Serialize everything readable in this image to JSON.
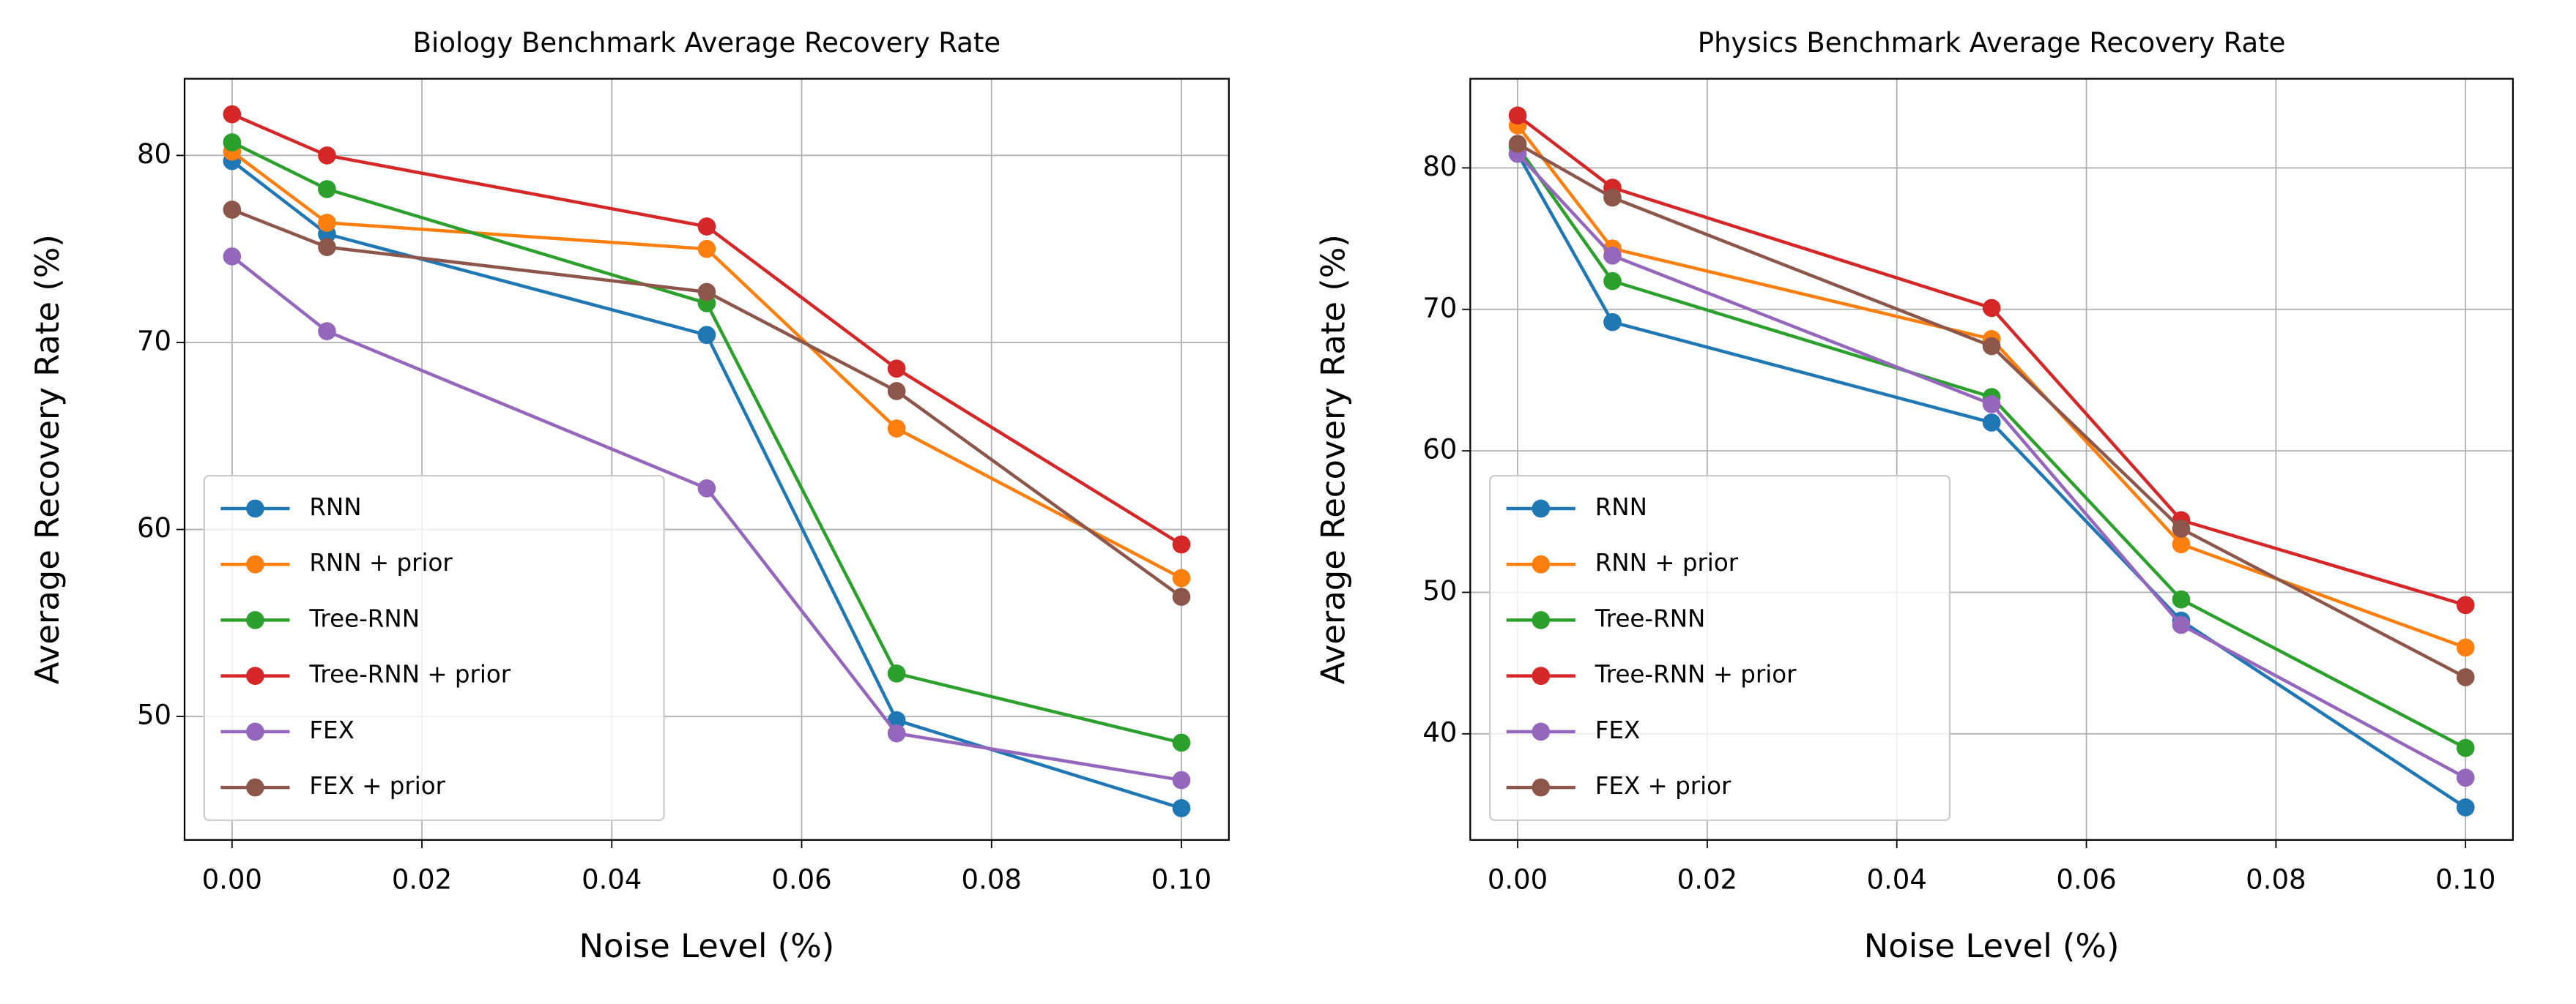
{
  "chart_data": [
    {
      "type": "line",
      "title": "Biology Benchmark Average Recovery Rate",
      "xlabel": "Noise Level (%)",
      "ylabel": "Average Recovery Rate (%)",
      "x": [
        0,
        0.01,
        0.05,
        0.07,
        0.1
      ],
      "xlim": [
        -0.005,
        0.105
      ],
      "ylim": [
        43.4,
        84.1
      ],
      "xticks": [
        {
          "value": 0,
          "label": "0.00"
        },
        {
          "value": 0.02,
          "label": "0.02"
        },
        {
          "value": 0.04,
          "label": "0.04"
        },
        {
          "value": 0.06,
          "label": "0.06"
        },
        {
          "value": 0.08,
          "label": "0.08"
        },
        {
          "value": 0.1,
          "label": "0.10"
        }
      ],
      "yticks": [
        50,
        60,
        70,
        80
      ],
      "grid": true,
      "legend": "lower left",
      "series": [
        {
          "name": "RNN",
          "color": "#1f77b4",
          "values": [
            79.7,
            75.8,
            70.4,
            49.8,
            45.1
          ]
        },
        {
          "name": "RNN + prior",
          "color": "#ff7f0e",
          "values": [
            80.2,
            76.4,
            75.0,
            65.4,
            57.4
          ]
        },
        {
          "name": "Tree-RNN",
          "color": "#2ca02c",
          "values": [
            80.7,
            78.2,
            72.1,
            52.3,
            48.6
          ]
        },
        {
          "name": "Tree-RNN + prior",
          "color": "#d62728",
          "values": [
            82.2,
            80.0,
            76.2,
            68.6,
            59.2
          ]
        },
        {
          "name": "FEX",
          "color": "#9467bd",
          "values": [
            74.6,
            70.6,
            62.2,
            49.1,
            46.6
          ]
        },
        {
          "name": "FEX + prior",
          "color": "#8c564b",
          "values": [
            77.1,
            75.1,
            72.7,
            67.4,
            56.4
          ]
        }
      ]
    },
    {
      "type": "line",
      "title": "Physics Benchmark Average Recovery Rate",
      "xlabel": "Noise Level (%)",
      "ylabel": "Average Recovery Rate (%)",
      "x": [
        0,
        0.01,
        0.05,
        0.07,
        0.1
      ],
      "xlim": [
        -0.005,
        0.105
      ],
      "ylim": [
        32.5,
        86.3
      ],
      "xticks": [
        {
          "value": 0,
          "label": "0.00"
        },
        {
          "value": 0.02,
          "label": "0.02"
        },
        {
          "value": 0.04,
          "label": "0.04"
        },
        {
          "value": 0.06,
          "label": "0.06"
        },
        {
          "value": 0.08,
          "label": "0.08"
        },
        {
          "value": 0.1,
          "label": "0.10"
        }
      ],
      "yticks": [
        40,
        50,
        60,
        70,
        80
      ],
      "grid": true,
      "legend": "lower left",
      "series": [
        {
          "name": "RNN",
          "color": "#1f77b4",
          "values": [
            81.0,
            69.1,
            62.0,
            48.0,
            34.8
          ]
        },
        {
          "name": "RNN + prior",
          "color": "#ff7f0e",
          "values": [
            83.0,
            74.3,
            67.9,
            53.4,
            46.1
          ]
        },
        {
          "name": "Tree-RNN",
          "color": "#2ca02c",
          "values": [
            81.5,
            72.0,
            63.8,
            49.5,
            39.0
          ]
        },
        {
          "name": "Tree-RNN + prior",
          "color": "#d62728",
          "values": [
            83.7,
            78.6,
            70.1,
            55.1,
            49.1
          ]
        },
        {
          "name": "FEX",
          "color": "#9467bd",
          "values": [
            81.0,
            73.8,
            63.3,
            47.7,
            36.9
          ]
        },
        {
          "name": "FEX + prior",
          "color": "#8c564b",
          "values": [
            81.7,
            77.9,
            67.4,
            54.5,
            44.0
          ]
        }
      ]
    }
  ]
}
